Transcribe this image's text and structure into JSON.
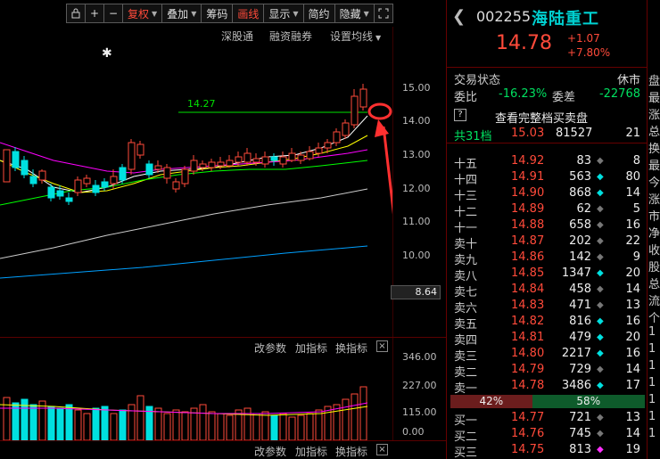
{
  "toolbar": {
    "plus": "+",
    "minus": "−",
    "fuquan": "复权",
    "diejia": "叠加",
    "chouma": "筹码",
    "huaxian": "画线",
    "xianshi": "显示",
    "jianyue": "简约",
    "yincang": "隐藏"
  },
  "secondary_toolbar": {
    "shengutong": "深股通",
    "rongzi": "融资融券",
    "set_ma": "设置均线"
  },
  "price_axis": [
    "15.00",
    "14.00",
    "13.00",
    "12.00",
    "11.00",
    "10.00"
  ],
  "current_tag": "8.64",
  "annotation_price": "14.27",
  "indicator_bar": {
    "change_params": "改参数",
    "add_indicator": "加指标",
    "switch_indicator": "换指标",
    "close": "×"
  },
  "volume_axis": [
    "346.00",
    "227.00",
    "115.00",
    "0.00"
  ],
  "stock": {
    "code": "002255",
    "name": "海陆重工",
    "price": "14.78",
    "change": "+1.07",
    "change_pct": "+7.80%"
  },
  "trade_status": {
    "label": "交易状态",
    "value": "休市"
  },
  "wei_bi": {
    "label": "委比",
    "value": "-16.23%",
    "label2": "委差",
    "value2": "-22768"
  },
  "full_book": {
    "q": "?",
    "label": "查看完整档买卖盘"
  },
  "total": {
    "label": "共31档",
    "price": "15.03",
    "volume": "81527",
    "count": "21"
  },
  "asks": [
    {
      "label": "十五",
      "price": "14.92",
      "volume": "83",
      "dot": "grey",
      "count": "8"
    },
    {
      "label": "十四",
      "price": "14.91",
      "volume": "563",
      "dot": "cyan",
      "count": "80"
    },
    {
      "label": "十三",
      "price": "14.90",
      "volume": "868",
      "dot": "cyan",
      "count": "14"
    },
    {
      "label": "十二",
      "price": "14.89",
      "volume": "62",
      "dot": "grey",
      "count": "5"
    },
    {
      "label": "十一",
      "price": "14.88",
      "volume": "658",
      "dot": "grey",
      "count": "16"
    },
    {
      "label": "卖十",
      "price": "14.87",
      "volume": "202",
      "dot": "grey",
      "count": "22"
    },
    {
      "label": "卖九",
      "price": "14.86",
      "volume": "142",
      "dot": "grey",
      "count": "9"
    },
    {
      "label": "卖八",
      "price": "14.85",
      "volume": "1347",
      "dot": "cyan",
      "count": "20"
    },
    {
      "label": "卖七",
      "price": "14.84",
      "volume": "458",
      "dot": "grey",
      "count": "14"
    },
    {
      "label": "卖六",
      "price": "14.83",
      "volume": "471",
      "dot": "grey",
      "count": "13"
    },
    {
      "label": "卖五",
      "price": "14.82",
      "volume": "816",
      "dot": "cyan",
      "count": "16"
    },
    {
      "label": "卖四",
      "price": "14.81",
      "volume": "479",
      "dot": "cyan",
      "count": "20"
    },
    {
      "label": "卖三",
      "price": "14.80",
      "volume": "2217",
      "dot": "cyan",
      "count": "16"
    },
    {
      "label": "卖二",
      "price": "14.79",
      "volume": "729",
      "dot": "grey",
      "count": "14"
    },
    {
      "label": "卖一",
      "price": "14.78",
      "volume": "3486",
      "dot": "cyan",
      "count": "17"
    }
  ],
  "split": {
    "sell": "42%",
    "buy": "58%"
  },
  "bids": [
    {
      "label": "买一",
      "price": "14.77",
      "volume": "721",
      "dot": "grey",
      "count": "13"
    },
    {
      "label": "买二",
      "price": "14.76",
      "volume": "745",
      "dot": "grey",
      "count": "14"
    },
    {
      "label": "买三",
      "price": "14.75",
      "volume": "813",
      "dot": "magenta",
      "count": "19"
    }
  ],
  "right_strip": [
    "盘",
    "最",
    "涨",
    "总",
    "换",
    "最",
    "今",
    "涨",
    "市",
    "净",
    "收",
    "股",
    "总",
    "流",
    "个",
    "1",
    "1",
    "1",
    "1",
    "1",
    "1",
    "1"
  ],
  "colors": {
    "up": "#ff4a3a",
    "down": "#00e0e0",
    "ma5": "#ffffff",
    "ma10": "#ffff00",
    "ma20": "#ff00ff",
    "ma60": "#00ff00",
    "ma120": "#cccccc",
    "ma250": "#00a0ff",
    "annotation": "#ff3030"
  }
}
